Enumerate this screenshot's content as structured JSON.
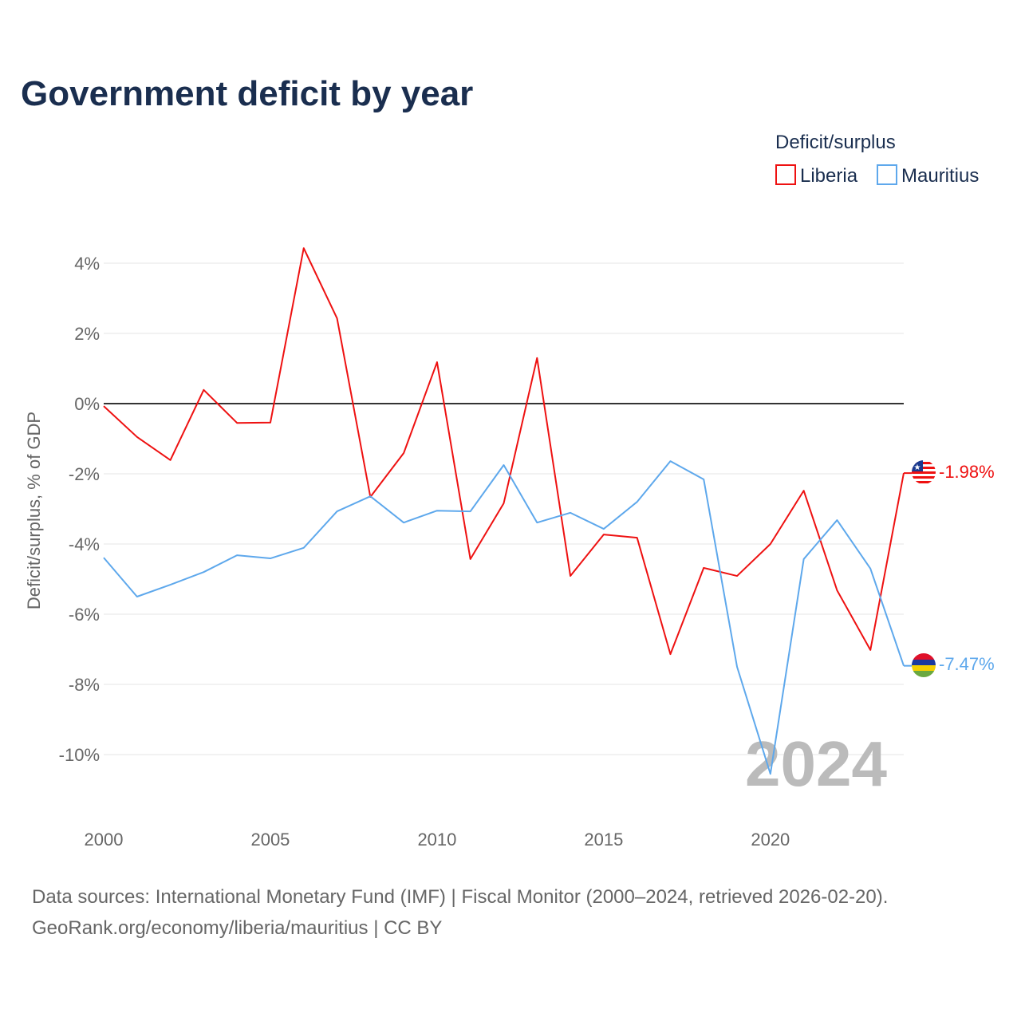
{
  "chart_data": {
    "type": "line",
    "title": "Government deficit by year",
    "xlabel": "",
    "ylabel": "Deficit/surplus, % of GDP",
    "xlim": [
      2000,
      2024
    ],
    "ylim": [
      -11.5,
      5
    ],
    "x_ticks": [
      2000,
      2005,
      2010,
      2015,
      2020
    ],
    "x_tick_labels": [
      "2000",
      "2005",
      "2010",
      "2015",
      "2020"
    ],
    "y_ticks": [
      4,
      2,
      0,
      -2,
      -4,
      -6,
      -8,
      -10
    ],
    "y_tick_labels": [
      "4%",
      "2%",
      "0%",
      "-2%",
      "-4%",
      "-6%",
      "-8%",
      "-10%"
    ],
    "grid": true,
    "legend": {
      "title": "Deficit/surplus",
      "placement": "top-right"
    },
    "x": [
      2000,
      2001,
      2002,
      2003,
      2004,
      2005,
      2006,
      2007,
      2008,
      2009,
      2010,
      2011,
      2012,
      2013,
      2014,
      2015,
      2016,
      2017,
      2018,
      2019,
      2020,
      2021,
      2022,
      2023,
      2024
    ],
    "series": [
      {
        "name": "Liberia",
        "color": "#ee1111",
        "end_label": "-1.98%",
        "values": [
          -0.07,
          -0.95,
          -1.61,
          0.39,
          -0.55,
          -0.54,
          4.43,
          2.43,
          -2.66,
          -1.41,
          1.18,
          -4.43,
          -2.84,
          1.3,
          -4.91,
          -3.73,
          -3.82,
          -7.14,
          -4.68,
          -4.91,
          -4.0,
          -2.48,
          -5.32,
          -7.02,
          -1.98
        ]
      },
      {
        "name": "Mauritius",
        "color": "#5ea8ec",
        "end_label": "-7.47%",
        "values": [
          -4.39,
          -5.5,
          -5.16,
          -4.8,
          -4.32,
          -4.41,
          -4.11,
          -3.07,
          -2.64,
          -3.39,
          -3.05,
          -3.07,
          -1.75,
          -3.39,
          -3.11,
          -3.57,
          -2.8,
          -1.64,
          -2.16,
          -7.5,
          -10.55,
          -4.43,
          -3.32,
          -4.7,
          -7.47
        ]
      }
    ],
    "year_watermark": "2024"
  },
  "source_line1": "Data sources: International Monetary Fund (IMF) | Fiscal Monitor (2000–2024, retrieved 2026-02-20).",
  "source_line2": "GeoRank.org/economy/liberia/mauritius | CC BY"
}
